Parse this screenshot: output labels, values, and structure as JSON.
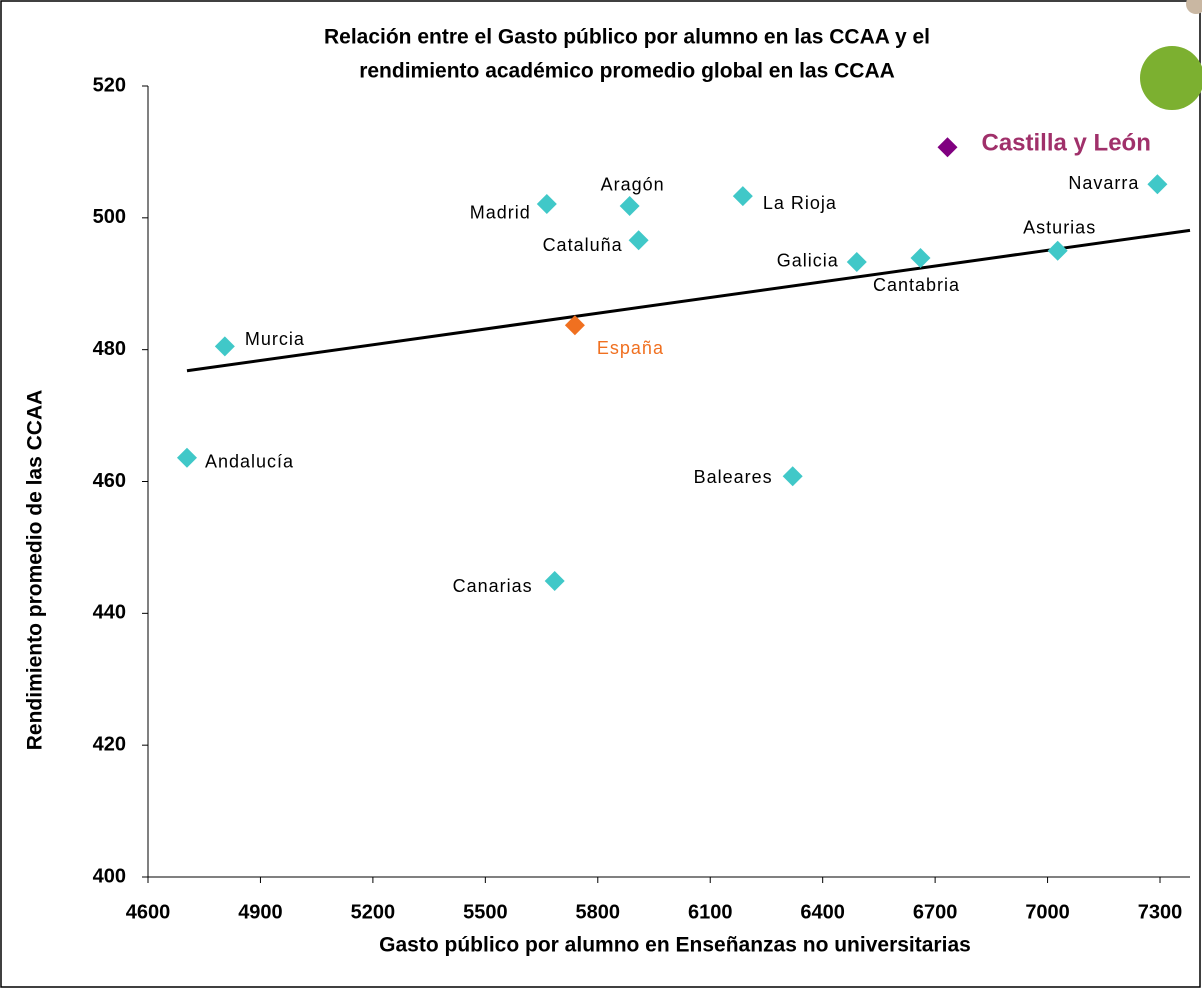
{
  "chart_data": {
    "type": "scatter",
    "title": [
      "Relación entre el Gasto público por alumno en las CCAA  y el",
      "rendimiento académico promedio global en las CCAA"
    ],
    "x_label": "Gasto público por alumno en Enseñanzas no universitarias",
    "y_label": "Rendimiento promedio de las CCAA",
    "xlim": [
      4600,
      7380
    ],
    "xticks": [
      4600,
      4900,
      5200,
      5500,
      5800,
      6100,
      6400,
      6700,
      7000,
      7300
    ],
    "ylim": [
      400,
      520
    ],
    "yticks": [
      400,
      420,
      440,
      460,
      480,
      500,
      520
    ],
    "points": [
      {
        "label": "Andalucía",
        "x": 4704,
        "y": 463.6,
        "color": "#40c8c8"
      },
      {
        "label": "Murcia",
        "x": 4805,
        "y": 480.5,
        "color": "#40c8c8"
      },
      {
        "label": "Madrid",
        "x": 5664,
        "y": 502.1,
        "color": "#40c8c8"
      },
      {
        "label": "Aragón",
        "x": 5885,
        "y": 501.8,
        "color": "#40c8c8"
      },
      {
        "label": "Cataluña",
        "x": 5909,
        "y": 496.6,
        "color": "#40c8c8"
      },
      {
        "label": "La Rioja",
        "x": 6187,
        "y": 503.3,
        "color": "#40c8c8"
      },
      {
        "label": "Galicia",
        "x": 6491,
        "y": 493.3,
        "color": "#40c8c8"
      },
      {
        "label": "Cantabria",
        "x": 6661,
        "y": 493.9,
        "color": "#40c8c8"
      },
      {
        "label": "Asturias",
        "x": 7027,
        "y": 495.0,
        "color": "#40c8c8"
      },
      {
        "label": "Navarra",
        "x": 7293,
        "y": 505.1,
        "color": "#40c8c8"
      },
      {
        "label": "Castilla y León",
        "x": 6733,
        "y": 510.7,
        "color": "#800080"
      },
      {
        "label": "España",
        "x": 5739,
        "y": 483.7,
        "color": "#f07020"
      },
      {
        "label": "Baleares",
        "x": 6320,
        "y": 460.8,
        "color": "#40c8c8"
      },
      {
        "label": "Canarias",
        "x": 5685,
        "y": 444.9,
        "color": "#40c8c8"
      }
    ],
    "trendline": {
      "x": [
        4704,
        7380
      ],
      "y": [
        476.8,
        498.1
      ],
      "color": "#000000"
    }
  }
}
